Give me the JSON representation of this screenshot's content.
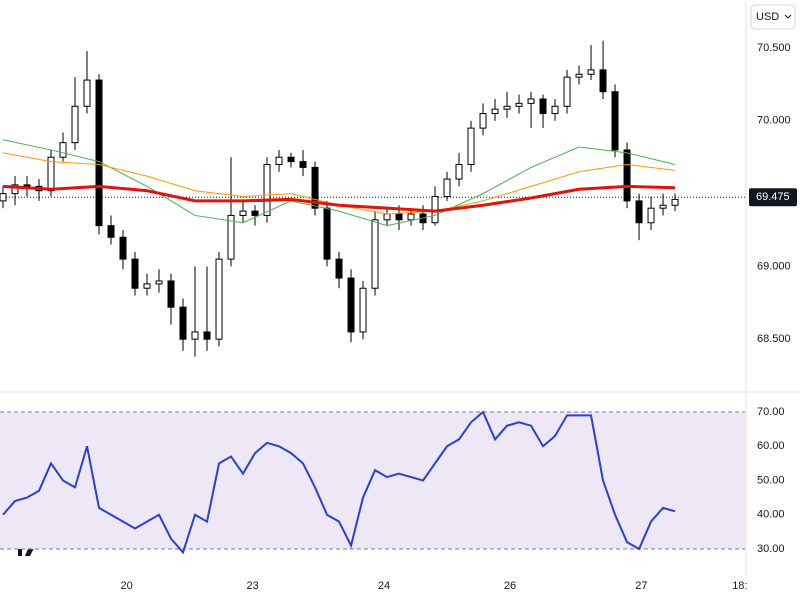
{
  "currency": "USD",
  "chart_data": [
    {
      "type": "candlestick",
      "xlim": [
        -0.25,
        61.83
      ],
      "ylim": [
        68.151,
        70.83
      ],
      "yticks": [
        {
          "value": 68.5,
          "label": "68.500"
        },
        {
          "value": 69,
          "label": "69.000"
        },
        {
          "value": 70,
          "label": "70.000"
        },
        {
          "value": 70.5,
          "label": "70.500"
        }
      ],
      "last_price": 69.475,
      "open": [
        69.45,
        69.5,
        69.56,
        69.55,
        69.52,
        69.75,
        69.85,
        70.1,
        70.28,
        69.28,
        69.2,
        69.05,
        68.85,
        68.88,
        68.9,
        68.72,
        68.5,
        68.55,
        68.5,
        69.05,
        69.35,
        69.38,
        69.35,
        69.7,
        69.75,
        69.72,
        69.68,
        69.4,
        69.05,
        68.92,
        68.55,
        68.85,
        69.32,
        69.36,
        69.32,
        69.36,
        69.3,
        69.48,
        69.6,
        69.7,
        69.95,
        70.05,
        70.08,
        70.1,
        70.12,
        70.15,
        70.05,
        70.1,
        70.3,
        70.32,
        70.35,
        70.2,
        69.8,
        69.45,
        69.3,
        69.4,
        69.42
      ],
      "high": [
        69.55,
        69.62,
        69.62,
        69.6,
        69.8,
        69.92,
        70.3,
        70.48,
        70.32,
        69.35,
        69.25,
        69.1,
        68.95,
        68.98,
        68.95,
        68.78,
        69.0,
        69.0,
        69.1,
        69.75,
        69.45,
        69.42,
        69.75,
        69.8,
        69.78,
        69.8,
        69.72,
        69.45,
        69.1,
        68.98,
        68.9,
        69.38,
        69.4,
        69.42,
        69.4,
        69.42,
        69.55,
        69.65,
        69.78,
        70.0,
        70.12,
        70.15,
        70.2,
        70.18,
        70.2,
        70.18,
        70.15,
        70.35,
        70.38,
        70.52,
        70.55,
        70.25,
        69.85,
        69.5,
        69.48,
        69.5,
        69.5
      ],
      "low": [
        69.4,
        69.42,
        69.48,
        69.45,
        69.48,
        69.72,
        69.8,
        70.05,
        69.22,
        69.15,
        68.98,
        68.8,
        68.8,
        68.82,
        68.6,
        68.42,
        68.38,
        68.42,
        68.45,
        69.0,
        69.3,
        69.28,
        69.3,
        69.65,
        69.68,
        69.62,
        69.35,
        69.0,
        68.85,
        68.48,
        68.5,
        68.8,
        69.28,
        69.25,
        69.28,
        69.25,
        69.28,
        69.45,
        69.55,
        69.65,
        69.9,
        70.0,
        70.02,
        70.05,
        69.95,
        69.95,
        70.0,
        70.05,
        70.25,
        70.28,
        70.15,
        69.75,
        69.4,
        69.18,
        69.25,
        69.35,
        69.38
      ],
      "close": [
        69.5,
        69.56,
        69.55,
        69.52,
        69.75,
        69.85,
        70.1,
        70.28,
        69.28,
        69.2,
        69.05,
        68.85,
        68.88,
        68.9,
        68.72,
        68.5,
        68.55,
        68.5,
        69.05,
        69.35,
        69.38,
        69.35,
        69.7,
        69.75,
        69.72,
        69.68,
        69.4,
        69.05,
        68.92,
        68.55,
        68.85,
        69.32,
        69.36,
        69.32,
        69.36,
        69.3,
        69.48,
        69.6,
        69.7,
        69.95,
        70.05,
        70.08,
        70.1,
        70.12,
        70.15,
        70.05,
        70.1,
        70.3,
        70.32,
        70.35,
        70.2,
        69.8,
        69.45,
        69.3,
        69.4,
        69.42,
        69.46
      ],
      "up_color": "#ffffff",
      "down_color": "#000000",
      "border_color": "#000000",
      "ma_x": [
        0,
        4,
        8,
        12,
        16,
        20,
        24,
        28,
        32,
        36,
        40,
        44,
        48,
        52,
        56
      ],
      "series": [
        {
          "color": "#4caf50",
          "width": 1,
          "values": [
            69.87,
            69.8,
            69.72,
            69.55,
            69.35,
            69.3,
            69.45,
            69.38,
            69.28,
            69.35,
            69.5,
            69.68,
            69.82,
            69.78,
            69.7
          ]
        },
        {
          "color": "#ff9800",
          "width": 1,
          "values": [
            69.78,
            69.72,
            69.7,
            69.62,
            69.52,
            69.48,
            69.5,
            69.42,
            69.36,
            69.38,
            69.45,
            69.55,
            69.65,
            69.7,
            69.66
          ]
        },
        {
          "color": "#e3120b",
          "width": 3,
          "values": [
            69.55,
            69.53,
            69.55,
            69.52,
            69.45,
            69.45,
            69.46,
            69.42,
            69.4,
            69.38,
            69.42,
            69.47,
            69.53,
            69.55,
            69.54
          ]
        }
      ]
    },
    {
      "type": "line",
      "xlim": [
        -0.25,
        61.83
      ],
      "ylim": [
        23.87,
        73.5
      ],
      "yticks": [
        {
          "value": 30,
          "label": "30.00"
        },
        {
          "value": 40,
          "label": "40.00"
        },
        {
          "value": 50,
          "label": "50.00"
        },
        {
          "value": 60,
          "label": "60.00"
        },
        {
          "value": 70,
          "label": "70.00"
        }
      ],
      "levels": [
        30,
        70
      ],
      "band_color": "#ede7f6",
      "xticks": [
        {
          "value": 10.3,
          "label": "20"
        },
        {
          "value": 20.8,
          "label": "23"
        },
        {
          "value": 31.75,
          "label": "24"
        },
        {
          "value": 42.25,
          "label": "26"
        },
        {
          "value": 53.2,
          "label": "27"
        },
        {
          "value": 61.4,
          "label": "18:"
        }
      ],
      "series": [
        {
          "color": "#2940d3",
          "values": [
            40,
            44,
            45,
            47,
            55,
            50,
            48,
            60,
            42,
            40,
            38,
            36,
            38,
            40,
            33,
            29,
            40,
            38,
            55,
            57,
            52,
            58,
            61,
            60,
            58,
            55,
            48,
            40,
            38,
            31,
            45,
            53,
            51,
            52,
            51,
            50,
            55,
            60,
            62,
            67,
            70,
            62,
            66,
            67,
            66,
            60,
            63,
            69,
            69,
            69,
            50,
            40,
            32,
            30,
            38,
            42,
            41
          ]
        }
      ]
    }
  ]
}
